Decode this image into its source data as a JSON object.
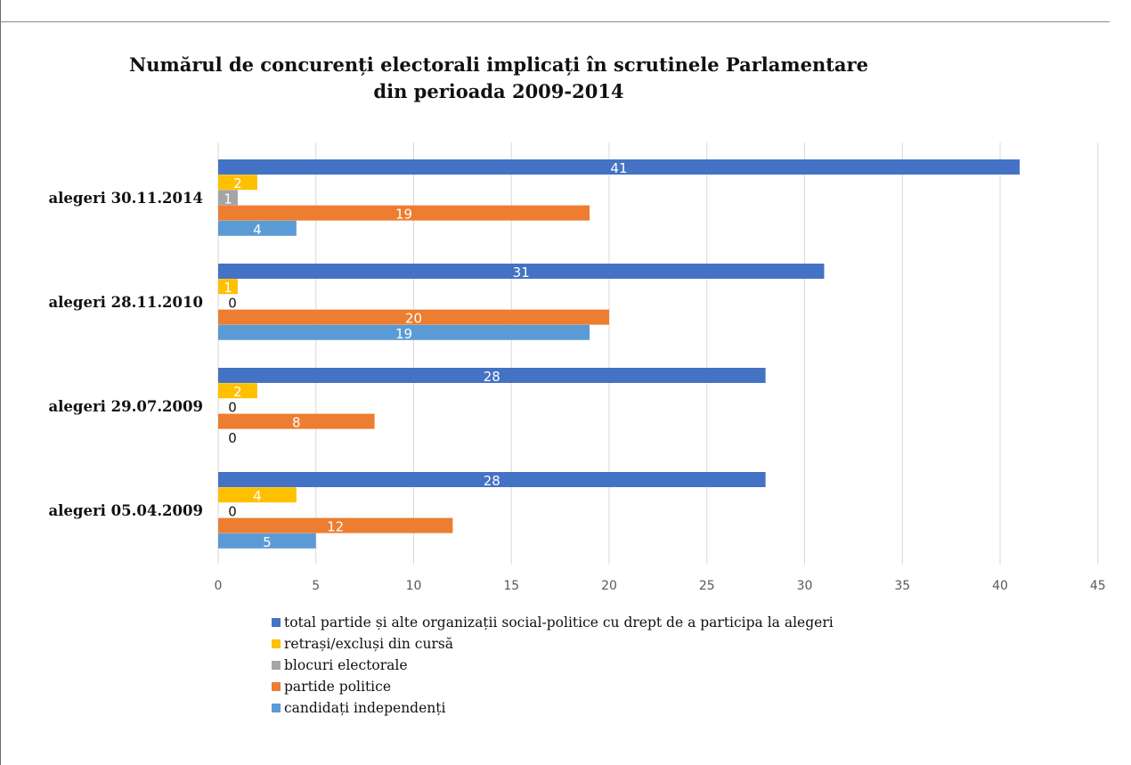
{
  "chart_data": {
    "type": "bar",
    "orientation": "horizontal",
    "title": "Numărul de concurenți electorali implicați în scrutinele Parlamentare din perioada 2009-2014",
    "title_lines": [
      "Numărul de concurenți electorali implicați în scrutinele Parlamentare",
      "din perioada 2009-2014"
    ],
    "categories": [
      "alegeri 30.11.2014",
      "alegeri 28.11.2010",
      "alegeri 29.07.2009",
      "alegeri 05.04.2009"
    ],
    "series": [
      {
        "name": "total partide și alte organizații social-politice cu drept de a participa la alegeri",
        "color": "#4472c4",
        "values": [
          41,
          31,
          28,
          28
        ]
      },
      {
        "name": "retrași/excluși din cursă",
        "color": "#ffc000",
        "values": [
          2,
          1,
          2,
          4
        ]
      },
      {
        "name": "blocuri electorale",
        "color": "#a5a5a5",
        "values": [
          1,
          0,
          0,
          0
        ]
      },
      {
        "name": "partide politice",
        "color": "#ed7d31",
        "values": [
          19,
          20,
          8,
          12
        ]
      },
      {
        "name": "candidați independenți",
        "color": "#5b9bd5",
        "values": [
          4,
          19,
          0,
          5
        ]
      }
    ],
    "xlim": [
      0,
      45
    ],
    "xticks": [
      0,
      5,
      10,
      15,
      20,
      25,
      30,
      35,
      40,
      45
    ],
    "grid": true,
    "legend_position": "bottom",
    "data_labels": true
  }
}
